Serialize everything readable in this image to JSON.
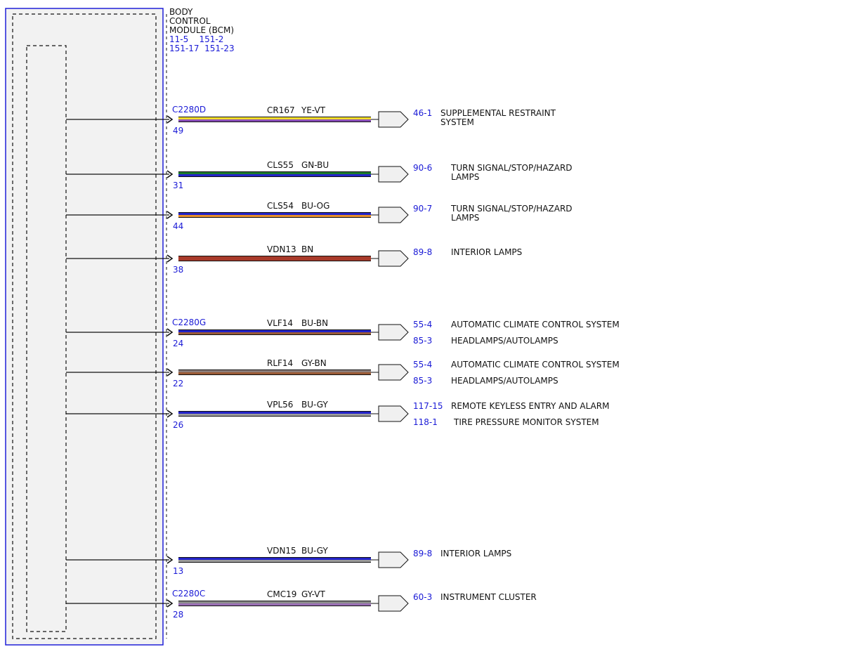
{
  "module": {
    "title_lines": [
      "BODY",
      "CONTROL",
      "MODULE (BCM)"
    ],
    "ref_lines": [
      "11-5    151-2",
      "151-17  151-23"
    ]
  },
  "connectors": [
    {
      "label": "C2280D",
      "row": 0
    },
    {
      "label": "C2280G",
      "row": 4
    },
    {
      "label": "C2280C",
      "row": 8
    }
  ],
  "circuits": [
    {
      "pin": "49",
      "circuit": "CR167",
      "color_code": "YE-VT",
      "colors": [
        "#f2dd2a",
        "#8a4fb5"
      ],
      "dests": [
        {
          "ref": "46-1",
          "lines": [
            "SUPPLEMENTAL RESTRAINT",
            "SYSTEM"
          ]
        }
      ]
    },
    {
      "pin": "31",
      "circuit": "CLS55",
      "color_code": "GN-BU",
      "colors": [
        "#1d7a2e",
        "#2323c8"
      ],
      "dests": [
        {
          "ref": "90-6",
          "lines": [
            "TURN SIGNAL/STOP/HAZARD",
            "LAMPS"
          ]
        }
      ]
    },
    {
      "pin": "44",
      "circuit": "CLS54",
      "color_code": "BU-OG",
      "colors": [
        "#2323c8",
        "#e8902a"
      ],
      "dests": [
        {
          "ref": "90-7",
          "lines": [
            "TURN SIGNAL/STOP/HAZARD",
            "LAMPS"
          ]
        }
      ]
    },
    {
      "pin": "38",
      "circuit": "VDN13",
      "color_code": "BN",
      "colors": [
        "#a83a2a",
        "#a83a2a"
      ],
      "dests": [
        {
          "ref": "89-8",
          "lines": [
            "INTERIOR LAMPS"
          ]
        }
      ]
    },
    {
      "pin": "24",
      "circuit": "VLF14",
      "color_code": "BU-BN",
      "colors": [
        "#2323c8",
        "#9a5a35"
      ],
      "dests": [
        {
          "ref": "55-4",
          "lines": [
            "AUTOMATIC CLIMATE CONTROL SYSTEM"
          ]
        },
        {
          "ref": "85-3",
          "lines": [
            "HEADLAMPS/AUTOLAMPS"
          ]
        }
      ]
    },
    {
      "pin": "22",
      "circuit": "RLF14",
      "color_code": "GY-BN",
      "colors": [
        "#8c7d7a",
        "#9a5a35"
      ],
      "dests": [
        {
          "ref": "55-4",
          "lines": [
            "AUTOMATIC CLIMATE CONTROL SYSTEM"
          ]
        },
        {
          "ref": "85-3",
          "lines": [
            "HEADLAMPS/AUTOLAMPS"
          ]
        }
      ]
    },
    {
      "pin": "26",
      "circuit": "VPL56",
      "color_code": "BU-GY",
      "colors": [
        "#2323c8",
        "#9c9c9c"
      ],
      "dests": [
        {
          "ref": "117-15",
          "lines": [
            "REMOTE KEYLESS ENTRY AND ALARM"
          ]
        },
        {
          "ref": "118-1",
          "lines": [
            "TIRE PRESSURE MONITOR SYSTEM"
          ]
        }
      ]
    },
    {
      "pin": "13",
      "circuit": "VDN15",
      "color_code": "BU-GY",
      "colors": [
        "#2323c8",
        "#9c9c9c"
      ],
      "dests": [
        {
          "ref": "89-8",
          "lines": [
            "INTERIOR LAMPS"
          ]
        }
      ]
    },
    {
      "pin": "28",
      "circuit": "CMC19",
      "color_code": "GY-VT",
      "colors": [
        "#8c8c8c",
        "#9a6fb5"
      ],
      "dests": [
        {
          "ref": "60-3",
          "lines": [
            "INSTRUMENT CLUSTER"
          ]
        }
      ]
    }
  ]
}
